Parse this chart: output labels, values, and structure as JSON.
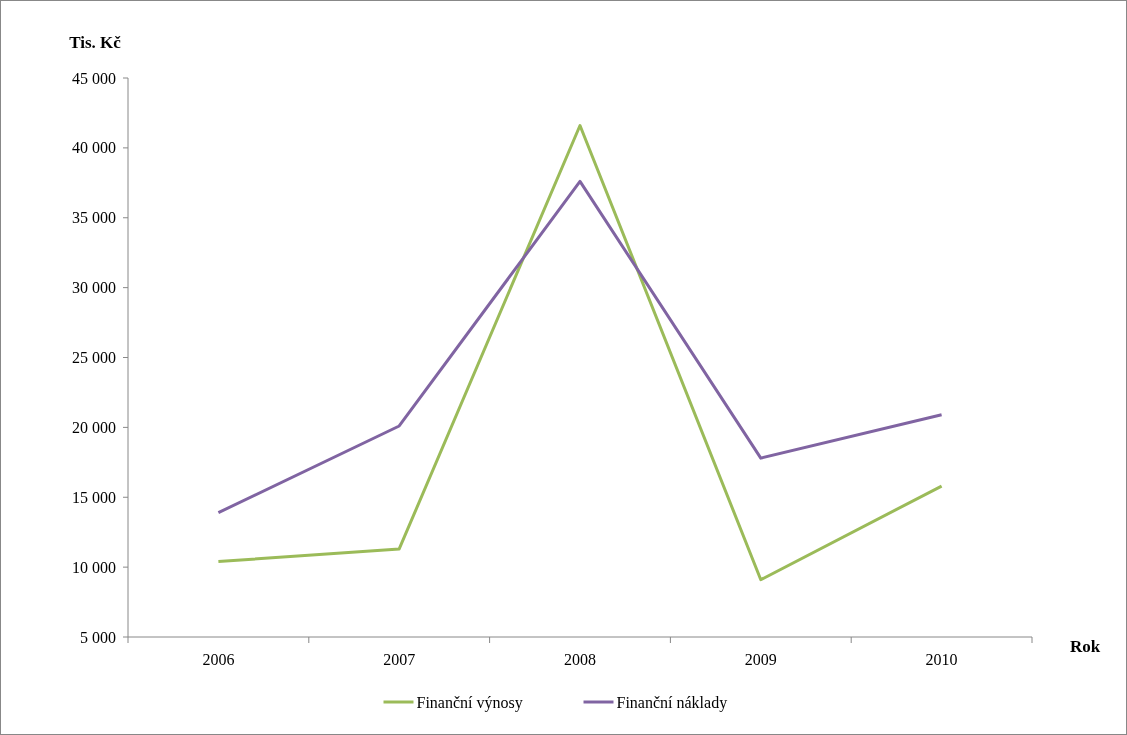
{
  "chart_data": {
    "type": "line",
    "xlabel": "Rok",
    "ylabel": "Tis. Kč",
    "categories": [
      "2006",
      "2007",
      "2008",
      "2009",
      "2010"
    ],
    "series": [
      {
        "name": "Finanční výnosy",
        "color": "#9bbb59",
        "values": [
          10400,
          11300,
          41600,
          9100,
          15800
        ]
      },
      {
        "name": "Finanční náklady",
        "color": "#8064a2",
        "values": [
          13900,
          20100,
          37600,
          17800,
          20900
        ]
      }
    ],
    "ylim": [
      5000,
      45000
    ],
    "yticks": [
      {
        "value": 5000,
        "label": "5 000"
      },
      {
        "value": 10000,
        "label": "10 000"
      },
      {
        "value": 15000,
        "label": "15 000"
      },
      {
        "value": 20000,
        "label": "20 000"
      },
      {
        "value": 25000,
        "label": "25 000"
      },
      {
        "value": 30000,
        "label": "30 000"
      },
      {
        "value": 35000,
        "label": "35 000"
      },
      {
        "value": 40000,
        "label": "40 000"
      },
      {
        "value": 45000,
        "label": "45 000"
      }
    ],
    "grid": false,
    "legend": "bottom",
    "marker": "none",
    "line_style": "solid"
  }
}
